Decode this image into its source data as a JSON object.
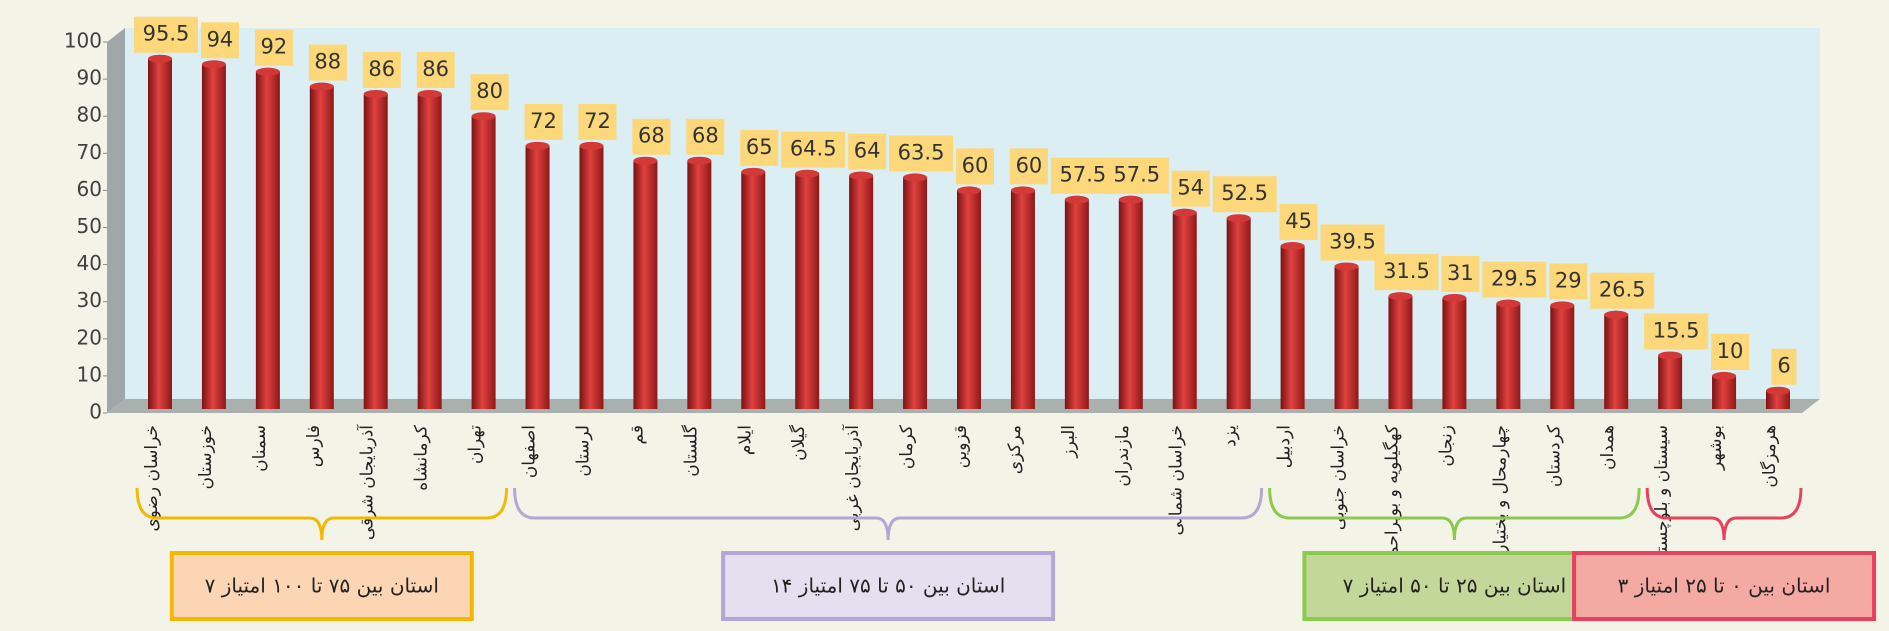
{
  "chart_data": {
    "type": "bar",
    "categories": [
      "خراسان رضوی",
      "خوزستان",
      "سمنان",
      "فارس",
      "آذربایجان شرقی",
      "کرمانشاه",
      "تهران",
      "اصفهان",
      "لرستان",
      "قم",
      "گلستان",
      "ایلام",
      "گیلان",
      "آذربایجان غربی",
      "کرمان",
      "قزوین",
      "مرکزی",
      "البرز",
      "مازندران",
      "خراسان شمالی",
      "یزد",
      "اردبیل",
      "خراسان جنوبی",
      "کهگیلویه و بویراحمد",
      "زنجان",
      "چهارمحال و بختیاری",
      "کردستان",
      "همدان",
      "سیستان و بلوچستان",
      "بوشهر",
      "هرمزگان"
    ],
    "values": [
      95.5,
      94,
      92,
      88,
      86,
      86,
      80,
      72,
      72,
      68,
      68,
      65,
      64.5,
      64,
      63.5,
      60,
      60,
      57.5,
      57.5,
      54,
      52.5,
      45,
      39.5,
      31.5,
      31,
      29.5,
      29,
      26.5,
      15.5,
      10,
      6
    ],
    "color": "#c8282c",
    "ylim": [
      0,
      100
    ],
    "yticks": [
      0,
      10,
      20,
      30,
      40,
      50,
      60,
      70,
      80,
      90,
      100
    ],
    "groups": [
      {
        "label": "۷ استان بین ۷۵ تا ۱۰۰ امتیاز",
        "start": 0,
        "end": 6,
        "color": "#f5b800",
        "fill": "#fcd5b5"
      },
      {
        "label": "۱۴ استان بین ۵۰ تا ۷۵ امتیاز",
        "start": 7,
        "end": 20,
        "color": "#b4a7d6",
        "fill": "#e5dff0"
      },
      {
        "label": "۷ استان بین ۲۵ تا ۵۰ امتیاز",
        "start": 21,
        "end": 27,
        "color": "#8cc94e",
        "fill": "#c4d79b"
      },
      {
        "label": "۳ استان بین ۰ تا ۲۵ امتیاز",
        "start": 28,
        "end": 30,
        "color": "#e8415d",
        "fill": "#f5a9a3"
      }
    ]
  }
}
